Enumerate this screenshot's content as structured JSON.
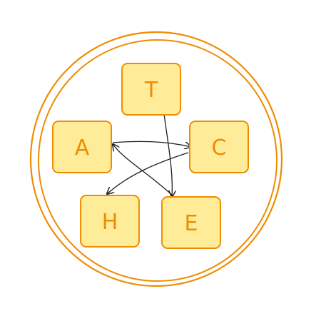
{
  "colors": {
    "ring_stroke": "#f08c00",
    "node_fill": "#ffec99",
    "node_stroke": "#f08c00",
    "label_color": "#f08c00",
    "edge_color": "#1e1e1e"
  },
  "nodes": [
    {
      "id": "T",
      "label": "T"
    },
    {
      "id": "A",
      "label": "A"
    },
    {
      "id": "C",
      "label": "C"
    },
    {
      "id": "H",
      "label": "H"
    },
    {
      "id": "E",
      "label": "E"
    }
  ],
  "edges": [
    {
      "from": "T",
      "to": "E"
    },
    {
      "from": "A",
      "to": "C"
    },
    {
      "from": "C",
      "to": "H"
    },
    {
      "from": "E",
      "to": "A"
    }
  ]
}
